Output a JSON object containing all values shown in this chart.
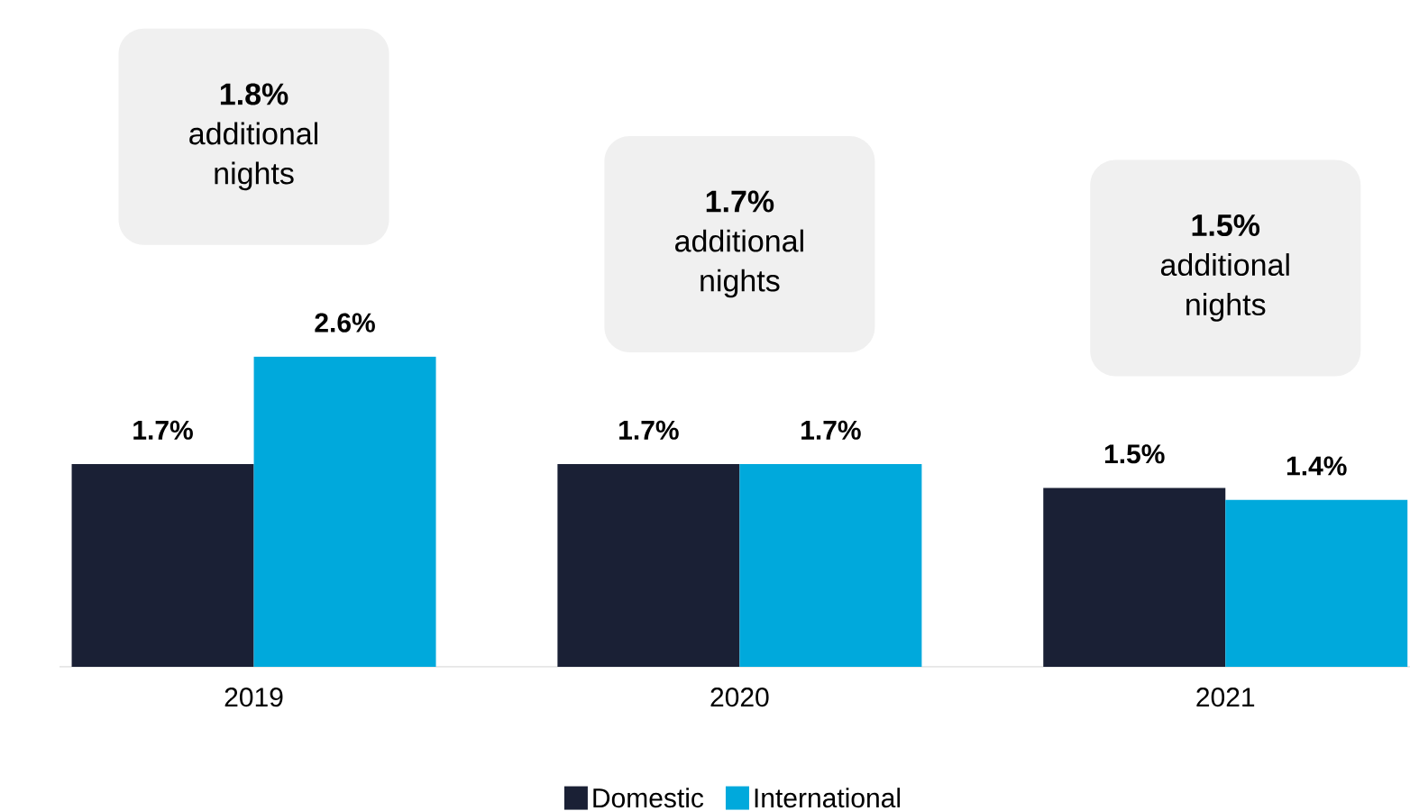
{
  "chart_data": {
    "type": "bar",
    "categories": [
      "2019",
      "2020",
      "2021"
    ],
    "series": [
      {
        "name": "Domestic",
        "color": "#1a2035",
        "values": [
          1.7,
          1.7,
          1.5
        ],
        "value_labels": [
          "1.7%",
          "1.7%",
          "1.5%"
        ]
      },
      {
        "name": "International",
        "color": "#00a9dc",
        "values": [
          2.6,
          1.7,
          1.4
        ],
        "value_labels": [
          "2.6%",
          "1.7%",
          "1.4%"
        ]
      }
    ],
    "annotations": [
      "**1.8%** additional nights",
      "**1.7%** additional nights",
      "**1.5%** additional nights"
    ],
    "legend": "bottom"
  }
}
